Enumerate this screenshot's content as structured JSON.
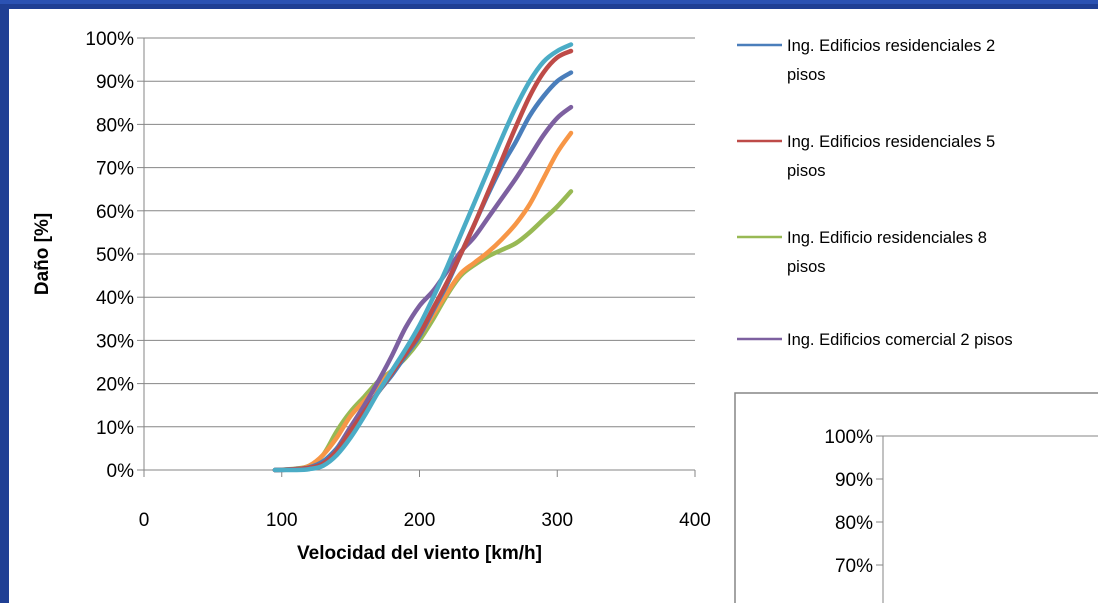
{
  "chart_data": [
    {
      "type": "line",
      "title": "",
      "xlabel": "Velocidad del viento [km/h]",
      "ylabel": "Daño [%]",
      "xlim": [
        0,
        400
      ],
      "ylim": [
        0,
        100
      ],
      "x_ticks": [
        "0",
        "100",
        "200",
        "300",
        "400"
      ],
      "y_ticks": [
        "0%",
        "10%",
        "20%",
        "30%",
        "40%",
        "50%",
        "60%",
        "70%",
        "80%",
        "90%",
        "100%"
      ],
      "grid": "horizontal",
      "legend_position": "right",
      "series": [
        {
          "name": "Ing. Edificios residenciales 2 pisos",
          "legend_lines": [
            "Ing. Edificios residenciales 2",
            "pisos"
          ],
          "color": "#4a7ebb",
          "in_legend": true,
          "x": [
            95,
            110,
            120,
            130,
            140,
            150,
            160,
            170,
            180,
            190,
            200,
            210,
            220,
            230,
            240,
            250,
            260,
            270,
            280,
            290,
            300,
            310
          ],
          "y": [
            0,
            0.2,
            0.6,
            2,
            5,
            9,
            13.5,
            18,
            22,
            26.5,
            31,
            37,
            43,
            50,
            57,
            64,
            70.5,
            76,
            82,
            86.5,
            90,
            92
          ]
        },
        {
          "name": "Ing. Edificios residenciales 5 pisos",
          "legend_lines": [
            "Ing. Edificios residenciales 5",
            "pisos"
          ],
          "color": "#be4b48",
          "in_legend": true,
          "x": [
            95,
            110,
            120,
            130,
            140,
            150,
            160,
            170,
            180,
            190,
            200,
            210,
            220,
            230,
            240,
            250,
            260,
            270,
            280,
            290,
            300,
            310
          ],
          "y": [
            0,
            0.2,
            0.5,
            1.5,
            4.5,
            9,
            13.5,
            18,
            22.5,
            27,
            31.5,
            37.5,
            43.5,
            50,
            57,
            64.5,
            72,
            79.5,
            86.5,
            92,
            95.5,
            97
          ]
        },
        {
          "name": "Ing. Edificio residenciales 8 pisos",
          "legend_lines": [
            "Ing. Edificio residenciales 8",
            "pisos"
          ],
          "color": "#98b954",
          "in_legend": true,
          "x": [
            95,
            110,
            120,
            130,
            140,
            150,
            160,
            170,
            180,
            190,
            200,
            210,
            220,
            230,
            240,
            250,
            260,
            270,
            280,
            290,
            300,
            310
          ],
          "y": [
            0,
            0.3,
            1,
            3.5,
            9,
            13.5,
            17,
            20.5,
            23,
            26,
            30,
            35,
            40.5,
            45,
            47.5,
            49.5,
            51,
            52.5,
            55,
            58,
            61,
            64.5
          ]
        },
        {
          "name": "Ing. Edificios comercial 2 pisos",
          "legend_lines": [
            "Ing. Edificios comercial 2 pisos"
          ],
          "color": "#7d60a0",
          "in_legend": true,
          "x": [
            95,
            110,
            120,
            130,
            140,
            150,
            160,
            170,
            180,
            190,
            200,
            210,
            220,
            230,
            240,
            250,
            260,
            270,
            280,
            290,
            300,
            310
          ],
          "y": [
            0,
            0.2,
            0.5,
            1.5,
            5,
            10,
            15,
            20.5,
            26.5,
            33,
            38,
            41.5,
            46,
            50.5,
            54,
            58.5,
            63,
            67.5,
            72.5,
            77.5,
            81.5,
            84
          ]
        },
        {
          "color": "#4bacc6",
          "in_legend": false,
          "x": [
            95,
            110,
            120,
            130,
            140,
            150,
            160,
            170,
            180,
            190,
            200,
            210,
            220,
            230,
            240,
            250,
            260,
            270,
            280,
            290,
            300,
            310
          ],
          "y": [
            0,
            0,
            0.2,
            1,
            3.5,
            7.5,
            12.5,
            18,
            23,
            28,
            33.5,
            40,
            47,
            54.5,
            62,
            69.5,
            77,
            84,
            90,
            94.5,
            97,
            98.5
          ]
        },
        {
          "color": "#f79646",
          "in_legend": false,
          "x": [
            95,
            110,
            120,
            130,
            140,
            150,
            160,
            170,
            180,
            190,
            200,
            210,
            220,
            230,
            240,
            250,
            260,
            270,
            280,
            290,
            300,
            310
          ],
          "y": [
            0,
            0.2,
            1,
            3.5,
            7.5,
            12.5,
            16,
            19.5,
            23,
            27,
            31,
            36,
            41,
            45.5,
            48,
            50.5,
            53.5,
            57,
            61.5,
            67.5,
            73.5,
            78
          ]
        }
      ]
    },
    {
      "type": "line",
      "title": "",
      "note": "second chart partially visible at lower right",
      "y_ticks": [
        "100%",
        "90%",
        "80%",
        "70%"
      ],
      "series": []
    }
  ]
}
